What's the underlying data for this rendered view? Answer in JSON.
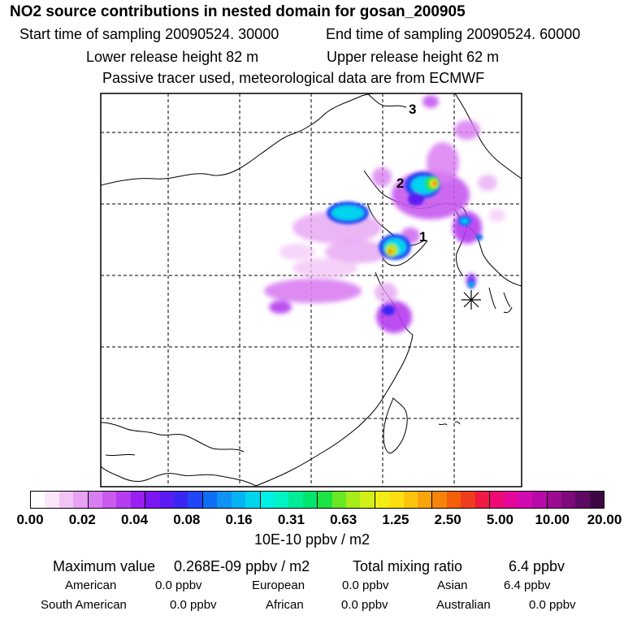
{
  "title": "NO2 source contributions in nested domain for gosan_200905",
  "sampling": {
    "start": "Start time of sampling 20090524. 30000",
    "end": "End time of sampling 20090524. 60000"
  },
  "release": {
    "lower": "Lower release height   82 m",
    "upper": "Upper release height   62 m"
  },
  "tracer_note": "Passive tracer used, meteorological data are from ECMWF",
  "map": {
    "markers": [
      {
        "label": "1"
      },
      {
        "label": "2"
      },
      {
        "label": "3"
      }
    ],
    "receptor_icon": "asterisk-icon"
  },
  "legend": {
    "ticks": [
      "0.00",
      "0.02",
      "0.04",
      "0.08",
      "0.16",
      "0.31",
      "0.63",
      "1.25",
      "2.50",
      "5.00",
      "10.00",
      "20.00"
    ],
    "unit": "10E-10 ppbv / m2",
    "colors": [
      "#ffffff",
      "#fbe6fb",
      "#f2c4f6",
      "#e7a2f3",
      "#d97ef2",
      "#c85aef",
      "#b53cf0",
      "#9a1ff1",
      "#7c16f2",
      "#5a1af2",
      "#3a26f2",
      "#2046f6",
      "#0e6ff6",
      "#0e92f4",
      "#06b3f2",
      "#00d4ee",
      "#00f0e4",
      "#00f3c2",
      "#00ec97",
      "#00e56e",
      "#1de344",
      "#6ae824",
      "#a6ec1a",
      "#d2f017",
      "#f2ee14",
      "#fde010",
      "#fdc40e",
      "#f9a40c",
      "#f6840a",
      "#f35e09",
      "#f03c1e",
      "#f01a44",
      "#ee0a74",
      "#e4089a",
      "#d20ab4",
      "#b80aa8",
      "#9c0a92",
      "#7e0a7c",
      "#5e0a62",
      "#3e0844"
    ]
  },
  "stats": {
    "max_label": "Maximum value",
    "max_value": "0.268E-09 ppbv / m2",
    "total_label": "Total mixing ratio",
    "total_value": "6.4 ppbv"
  },
  "regions": [
    {
      "name": "American",
      "value": "0.0 ppbv"
    },
    {
      "name": "European",
      "value": "0.0 ppbv"
    },
    {
      "name": "Asian",
      "value": "6.4 ppbv"
    },
    {
      "name": "South American",
      "value": "0.0 ppbv"
    },
    {
      "name": "African",
      "value": "0.0 ppbv"
    },
    {
      "name": "Australian",
      "value": "0.0 ppbv"
    }
  ]
}
